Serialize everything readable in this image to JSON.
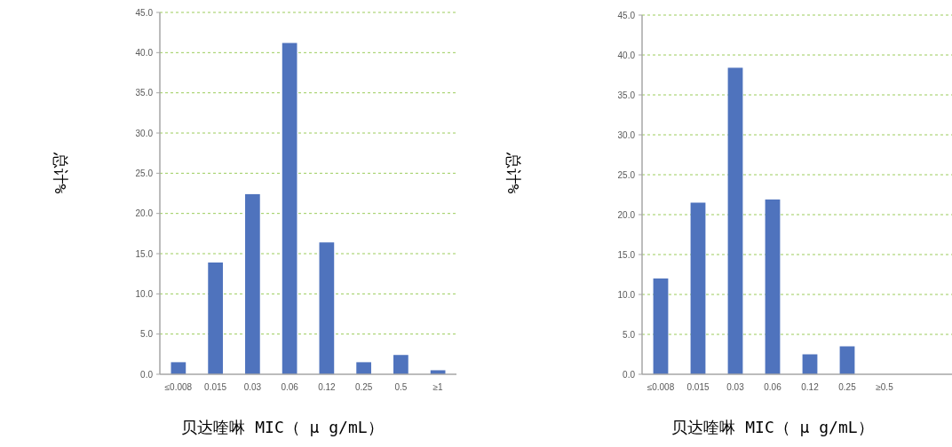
{
  "chart_data": [
    {
      "type": "bar",
      "xlabel": "贝达喹啉 MIC（ μ g/mL）",
      "ylabel": "总计%",
      "color": "#4f73bd",
      "grid": "y",
      "categories": [
        "≤0.008",
        "0.015",
        "0.03",
        "0.06",
        "0.12",
        "0.25",
        "0.5",
        "≥1"
      ],
      "values": [
        1.5,
        13.9,
        22.4,
        41.2,
        16.4,
        1.5,
        2.4,
        0.5
      ],
      "ylim": [
        0,
        45
      ],
      "yticks": [
        {
          "value": 0,
          "label": "0.0"
        },
        {
          "value": 5,
          "label": "5.0"
        },
        {
          "value": 10,
          "label": "10.0"
        },
        {
          "value": 15,
          "label": "15.0"
        },
        {
          "value": 20,
          "label": "20.0"
        },
        {
          "value": 25,
          "label": "25.0"
        },
        {
          "value": 30,
          "label": "30.0"
        },
        {
          "value": 35,
          "label": "35.0"
        },
        {
          "value": 40,
          "label": "40.0"
        },
        {
          "value": 45,
          "label": "45.0"
        }
      ]
    },
    {
      "type": "bar",
      "xlabel": "贝达喹啉 MIC（ μ g/mL）",
      "ylabel": "总计%",
      "color": "#4f73bd",
      "grid": "y",
      "categories": [
        "≤0.008",
        "0.015",
        "0.03",
        "0.06",
        "0.12",
        "0.25",
        "≥0.5"
      ],
      "values": [
        12.0,
        21.5,
        38.4,
        21.9,
        2.5,
        3.5,
        0
      ],
      "ylim": [
        0,
        45
      ],
      "yticks": [
        {
          "value": 0,
          "label": "0.0"
        },
        {
          "value": 5,
          "label": "5.0"
        },
        {
          "value": 10,
          "label": "10.0"
        },
        {
          "value": 15,
          "label": "15.0"
        },
        {
          "value": 20,
          "label": "20.0"
        },
        {
          "value": 25,
          "label": "25.0"
        },
        {
          "value": 30,
          "label": "30.0"
        },
        {
          "value": 35,
          "label": "35.0"
        },
        {
          "value": 40,
          "label": "40.0"
        },
        {
          "value": 45,
          "label": "45.0"
        }
      ]
    }
  ]
}
